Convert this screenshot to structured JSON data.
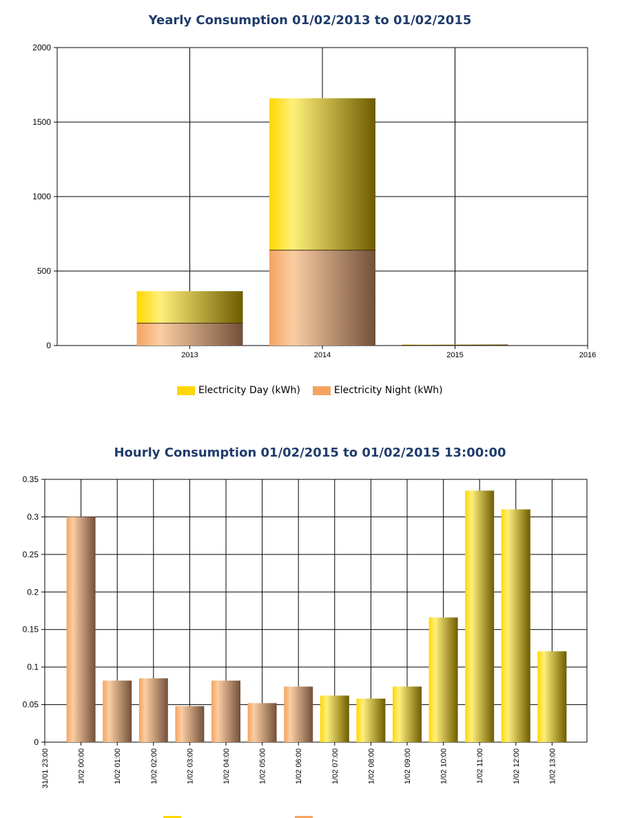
{
  "colors": {
    "day": "#ffd700",
    "night": "#f4a460",
    "title": "#1f3c6b"
  },
  "chart_data": [
    {
      "type": "bar",
      "stacked": true,
      "title": "Yearly Consumption 01/02/2013 to 01/02/2015",
      "xlabel": "",
      "ylabel": "",
      "ylim": [
        0,
        2000
      ],
      "yticks": [
        "0",
        "500",
        "1000",
        "1500",
        "2000"
      ],
      "xticks": [
        "2013",
        "2014",
        "2015",
        "2016"
      ],
      "categories": [
        "2013",
        "2014",
        "2015"
      ],
      "series": [
        {
          "name": "Electricity Day (kWh)",
          "values": [
            215,
            1020,
            5
          ]
        },
        {
          "name": "Electricity Night (kWh)",
          "values": [
            150,
            640,
            2
          ]
        }
      ],
      "grid": true,
      "legend": "bottom"
    },
    {
      "type": "bar",
      "title": "Hourly Consumption 01/02/2015 to 01/02/2015 13:00:00",
      "xlabel": "",
      "ylabel": "",
      "ylim": [
        0,
        0.35
      ],
      "yticks": [
        "0",
        "0.05",
        "0.1",
        "0.15",
        "0.2",
        "0.25",
        "0.3",
        "0.35"
      ],
      "xticks": [
        "31/01 23:00",
        "1/02 00:00",
        "1/02 01:00",
        "1/02 02:00",
        "1/02 03:00",
        "1/02 04:00",
        "1/02 05:00",
        "1/02 06:00",
        "1/02 07:00",
        "1/02 08:00",
        "1/02 09:00",
        "1/02 10:00",
        "1/02 11:00",
        "1/02 12:00",
        "1/02 13:00"
      ],
      "series": [
        {
          "values": [
            null,
            0.3,
            0.082,
            0.085,
            0.048,
            0.082,
            0.052,
            0.074,
            null,
            null,
            null,
            null,
            null,
            null,
            null
          ]
        },
        {
          "values": [
            null,
            null,
            null,
            null,
            null,
            null,
            null,
            null,
            0.062,
            0.058,
            0.074,
            0.166,
            0.335,
            0.31,
            0.121
          ]
        }
      ],
      "grid": true,
      "legend": "bottom"
    }
  ]
}
